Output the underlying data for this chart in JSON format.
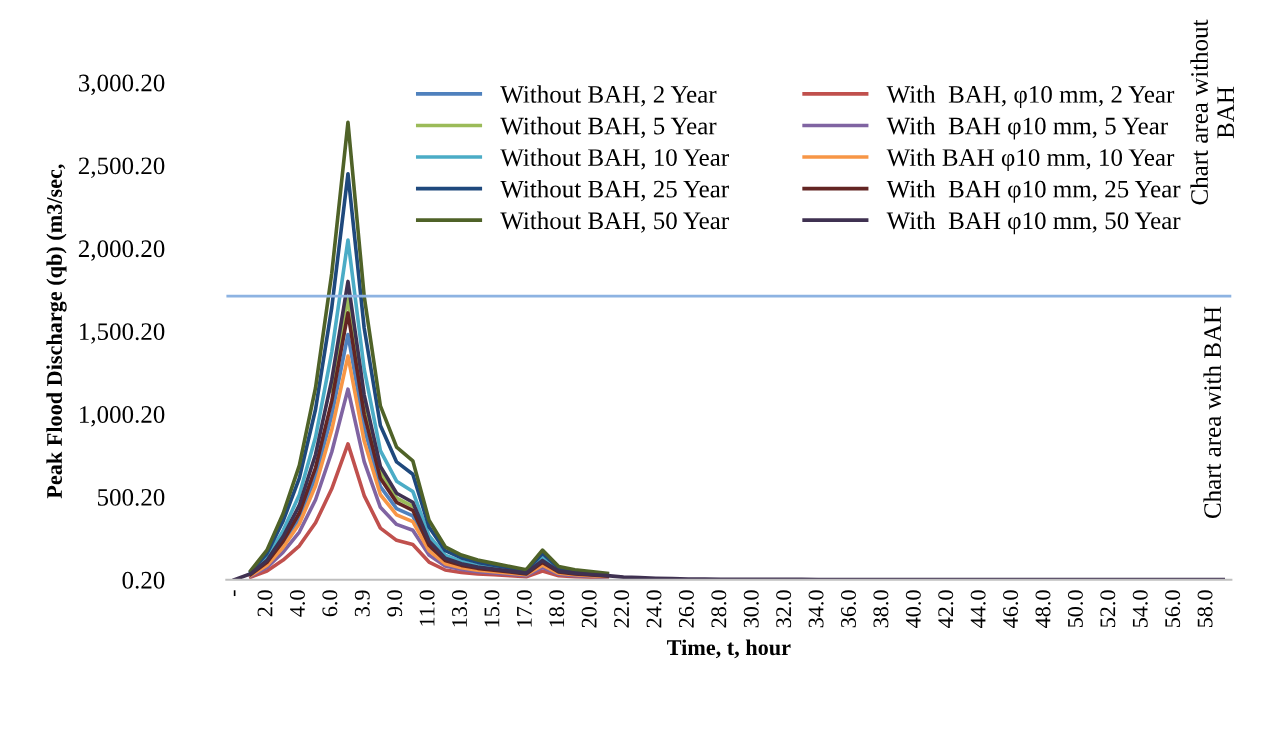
{
  "chart_data": {
    "type": "line",
    "xlabel": "Time, t, hour",
    "ylabel": "Peak Flood Discharge (qb) (m3/sec,",
    "categories": [
      "-",
      null,
      "2.0",
      null,
      "4.0",
      null,
      "6.0",
      null,
      "3.9",
      null,
      "9.0",
      null,
      "11.0",
      null,
      "13.0",
      null,
      "15.0",
      null,
      "17.0",
      null,
      "18.0",
      null,
      "20.0",
      null,
      "22.0",
      null,
      "24.0",
      null,
      "26.0",
      null,
      "28.0",
      null,
      "30.0",
      null,
      "32.0",
      null,
      "34.0",
      null,
      "36.0",
      null,
      "38.0",
      null,
      "40.0",
      null,
      "42.0",
      null,
      "44.0",
      null,
      "46.0",
      null,
      "48.0",
      null,
      "50.0",
      null,
      "52.0",
      null,
      "54.0",
      null,
      "56.0",
      null,
      "58.0",
      null
    ],
    "ylim": [
      0.2,
      3000.2
    ],
    "yticks": [
      {
        "value": 0.2,
        "label": "0.20"
      },
      {
        "value": 500.2,
        "label": "500.20"
      },
      {
        "value": 1000.2,
        "label": "1,000.20"
      },
      {
        "value": 1500.2,
        "label": "1,500.20"
      },
      {
        "value": 2000.2,
        "label": "2,000.20"
      },
      {
        "value": 2500.2,
        "label": "2,500.20"
      },
      {
        "value": 3000.2,
        "label": "3,000.20"
      }
    ],
    "grid": false,
    "legend": "top",
    "marker": "none",
    "line_style": "solid",
    "ref_lines": [
      {
        "axis": "y",
        "value": 1711,
        "color": "#8db3e2"
      }
    ],
    "annotations": [
      "Chart area without BAH",
      "Chart area with BAH"
    ],
    "series": [
      {
        "name": "Without BAH, 2 Year",
        "color": "#4f81bd",
        "values": [
          null,
          29,
          96,
          214,
          370,
          621,
          991,
          1480,
          917,
          562,
          429,
          385,
          192,
          107,
          80,
          64,
          53,
          43,
          33,
          96,
          43,
          null,
          null,
          null,
          null,
          null,
          null,
          null,
          null,
          null,
          null,
          null,
          null,
          null,
          null,
          null,
          null,
          null,
          null,
          null,
          null,
          null,
          null,
          null,
          null,
          null,
          null,
          null,
          null,
          null,
          null,
          null,
          null,
          null,
          null,
          null,
          null,
          null,
          null,
          null,
          null,
          null
        ]
      },
      {
        "name": "With  BAH, φ10 mm, 2 Year",
        "color": "#c0504d",
        "values": [
          null,
          16,
          53,
          119,
          205,
          344,
          549,
          820,
          508,
          312,
          238,
          213,
          107,
          59,
          44,
          35,
          30,
          24,
          18,
          53,
          24,
          18,
          15,
          11,
          null,
          null,
          null,
          null,
          null,
          null,
          null,
          null,
          null,
          null,
          null,
          null,
          null,
          null,
          null,
          null,
          null,
          null,
          null,
          null,
          null,
          null,
          null,
          null,
          null,
          null,
          null,
          null,
          null,
          null,
          null,
          null,
          null,
          null,
          null,
          null,
          null,
          null
        ]
      },
      {
        "name": "Without BAH, 5 Year",
        "color": "#9bbb59",
        "values": [
          null,
          null,
          null,
          null,
          null,
          null,
          1139,
          1700,
          1054,
          646,
          493,
          443,
          null,
          null,
          null,
          null,
          null,
          null,
          null,
          null,
          null,
          null,
          null,
          null,
          null,
          null,
          null,
          null,
          null,
          null,
          null,
          null,
          null,
          null,
          null,
          null,
          null,
          null,
          null,
          null,
          null,
          null,
          null,
          null,
          null,
          null,
          null,
          null,
          null,
          null,
          null,
          null,
          null,
          null,
          null,
          null,
          null,
          null,
          null,
          null,
          null,
          null
        ]
      },
      {
        "name": "With  BAH φ10 mm, 5 Year",
        "color": "#8064a2",
        "values": [
          null,
          23,
          75,
          167,
          288,
          483,
          771,
          1150,
          713,
          437,
          334,
          299,
          150,
          83,
          62,
          49,
          41,
          33,
          25,
          75,
          33,
          25,
          21,
          16,
          null,
          null,
          null,
          null,
          null,
          null,
          null,
          null,
          null,
          null,
          null,
          null,
          null,
          null,
          null,
          null,
          null,
          null,
          null,
          null,
          null,
          null,
          null,
          null,
          null,
          null,
          null,
          null,
          null,
          null,
          null,
          null,
          null,
          null,
          null,
          null,
          null,
          null
        ]
      },
      {
        "name": "Without BAH, 10 Year",
        "color": "#4bacc6",
        "values": [
          null,
          41,
          133,
          297,
          513,
          861,
          1374,
          2050,
          1271,
          779,
          595,
          533,
          267,
          148,
          111,
          88,
          74,
          59,
          45,
          133,
          59,
          45,
          null,
          null,
          null,
          null,
          null,
          null,
          null,
          null,
          null,
          null,
          null,
          null,
          null,
          null,
          null,
          null,
          null,
          null,
          null,
          null,
          null,
          null,
          null,
          null,
          null,
          null,
          null,
          null,
          null,
          null,
          null,
          null,
          null,
          null,
          null,
          null,
          null,
          null,
          null,
          null
        ]
      },
      {
        "name": "With BAH φ10 mm, 10 Year",
        "color": "#f79646",
        "values": [
          null,
          27,
          88,
          196,
          338,
          567,
          905,
          1350,
          837,
          513,
          392,
          351,
          176,
          97,
          73,
          58,
          49,
          39,
          30,
          88,
          39,
          30,
          24,
          19,
          null,
          null,
          null,
          null,
          null,
          null,
          null,
          null,
          null,
          null,
          null,
          null,
          null,
          null,
          null,
          null,
          null,
          null,
          null,
          null,
          null,
          null,
          null,
          null,
          null,
          null,
          null,
          null,
          null,
          null,
          null,
          null,
          null,
          null,
          null,
          null,
          null,
          null
        ]
      },
      {
        "name": "Without BAH, 25 Year",
        "color": "#1f497d",
        "values": [
          null,
          49,
          159,
          355,
          613,
          1029,
          1642,
          2450,
          1519,
          931,
          711,
          637,
          319,
          176,
          132,
          105,
          88,
          71,
          54,
          159,
          71,
          54,
          44,
          34,
          null,
          null,
          null,
          null,
          null,
          null,
          null,
          null,
          null,
          null,
          null,
          null,
          null,
          null,
          null,
          null,
          null,
          null,
          null,
          null,
          null,
          null,
          null,
          null,
          null,
          null,
          null,
          null,
          null,
          null,
          null,
          null,
          null,
          null,
          null,
          null,
          null,
          null
        ]
      },
      {
        "name": "With  BAH φ10 mm, 25 Year",
        "color": "#632523",
        "values": [
          null,
          32,
          105,
          233,
          403,
          676,
          1079,
          1610,
          998,
          612,
          467,
          419,
          209,
          116,
          87,
          69,
          58,
          47,
          35,
          105,
          47,
          35,
          29,
          23,
          null,
          null,
          null,
          null,
          null,
          null,
          null,
          null,
          null,
          null,
          null,
          null,
          null,
          null,
          null,
          null,
          null,
          null,
          null,
          null,
          null,
          null,
          null,
          null,
          null,
          null,
          null,
          null,
          null,
          null,
          null,
          null,
          null,
          null,
          null,
          null,
          null,
          null
        ]
      },
      {
        "name": "Without BAH, 50 Year",
        "color": "#4f6228",
        "values": [
          null,
          55,
          179,
          400,
          690,
          1159,
          1849,
          2760,
          1711,
          1049,
          800,
          718,
          359,
          199,
          149,
          119,
          99,
          80,
          61,
          179,
          80,
          61,
          50,
          39,
          null,
          null,
          null,
          null,
          null,
          null,
          null,
          null,
          null,
          null,
          null,
          null,
          null,
          null,
          null,
          null,
          null,
          null,
          null,
          null,
          null,
          null,
          null,
          null,
          null,
          null,
          null,
          null,
          null,
          null,
          null,
          null,
          null,
          null,
          null,
          null,
          null,
          null
        ]
      },
      {
        "name": "With  BAH φ10 mm, 50 Year",
        "color": "#3f3151",
        "values": [
          1,
          36,
          117,
          261,
          450,
          756,
          1206,
          1800,
          1116,
          684,
          522,
          468,
          234,
          130,
          97,
          77,
          65,
          52,
          40,
          117,
          52,
          40,
          32,
          25,
          16,
          13,
          9,
          7,
          5,
          5,
          3,
          3,
          3,
          3,
          3,
          3,
          2,
          2,
          2,
          2,
          2,
          2,
          2,
          2,
          2,
          2,
          1,
          1,
          1,
          1,
          1,
          1,
          1,
          1,
          1,
          1,
          1,
          1,
          1,
          1,
          1,
          1
        ]
      }
    ]
  }
}
